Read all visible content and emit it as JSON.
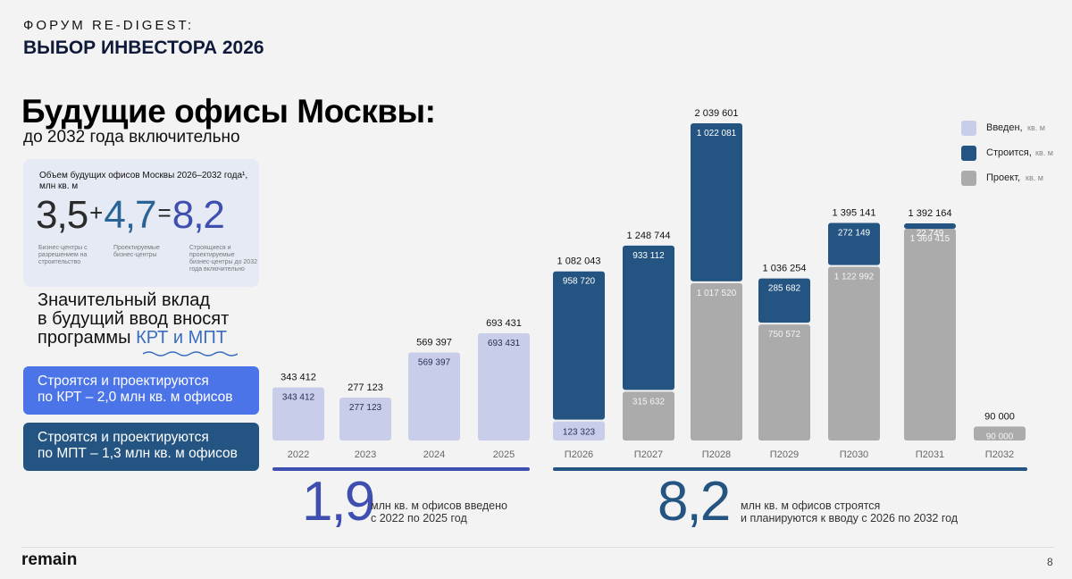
{
  "header": {
    "forum": "ФОРУМ RE-DIGEST:",
    "subtitle": "ВЫБОР ИНВЕСТОРА 2026"
  },
  "title": {
    "main": "Будущие офисы Москвы:",
    "sub": "до 2032 года включительно"
  },
  "volume_card": {
    "title": "Объем будущих офисов Москвы 2026–2032 года¹,",
    "unit": "млн кв. м",
    "n1": "3,5",
    "op1": "+",
    "n2": "4,7",
    "op2": "=",
    "n3": "8,2",
    "cap1": "Бизнес-центры с разрешением на строительство",
    "cap2": "Проектируемые бизнес-центры",
    "cap3": "Строящиеся и проектируемые бизнес-центры до 2032 года включительно"
  },
  "contribution": {
    "line1": "Значительный вклад",
    "line2": "в будущий ввод вносят",
    "line3_prefix": "программы ",
    "line3_hl": "КРТ и МПТ"
  },
  "pills": {
    "krt_line1": "Строятся и проектируются",
    "krt_line2": "по КРТ – 2,0 млн кв. м офисов",
    "mpt_line1": "Строятся и проектируются",
    "mpt_line2": "по МПТ – 1,3 млн кв. м офисов"
  },
  "legend": [
    {
      "label": "Введен,",
      "unit": "кв. м",
      "color": "#c8cdea"
    },
    {
      "label": "Строится,",
      "unit": "кв. м",
      "color": "#245481"
    },
    {
      "label": "Проект,",
      "unit": "кв. м",
      "color": "#ababab"
    }
  ],
  "summary": {
    "left_big": "1,9",
    "left_text1": "млн кв. м офисов введено",
    "left_text2": "с 2022 по 2025 год",
    "right_big": "8,2",
    "right_text1": "млн кв. м офисов строятся",
    "right_text2": "и планируются к вводу с 2026 по 2032 год"
  },
  "footer": {
    "logo": "remain",
    "page": "8"
  },
  "chart_data": {
    "type": "bar",
    "stacked": true,
    "categories": [
      "2022",
      "2023",
      "2024",
      "2025",
      "П2026",
      "П2027",
      "П2028",
      "П2029",
      "П2030",
      "П2031",
      "П2032"
    ],
    "series": [
      {
        "name": "Введен",
        "color": "#c8cdea",
        "values": [
          343412,
          277123,
          569397,
          693431,
          123323,
          0,
          0,
          0,
          0,
          0,
          0
        ],
        "labels": [
          "343 412",
          "277 123",
          "569 397",
          "693 431",
          "123 323",
          "",
          "",
          "",
          "",
          "",
          ""
        ]
      },
      {
        "name": "Проект",
        "color": "#ababab",
        "values": [
          0,
          0,
          0,
          0,
          0,
          315632,
          1017520,
          750572,
          1122992,
          1369415,
          90000
        ],
        "labels": [
          "",
          "",
          "",
          "",
          "",
          "315 632",
          "1 017 520",
          "750 572",
          "1 122 992",
          "1 369 415",
          "90 000"
        ]
      },
      {
        "name": "Строится",
        "color": "#245481",
        "values": [
          0,
          0,
          0,
          0,
          958720,
          933112,
          1022081,
          285682,
          272149,
          22749,
          0
        ],
        "labels": [
          "",
          "",
          "",
          "",
          "958 720",
          "933 112",
          "1 022 081",
          "285 682",
          "272 149",
          "22 749",
          ""
        ]
      }
    ],
    "totals": [
      "343 412",
      "277 123",
      "569 397",
      "693 431",
      "1 082 043",
      "1 248 744",
      "2 039 601",
      "1 036 254",
      "1 395 141",
      "1 392 164",
      "90 000"
    ],
    "ylim": [
      0,
      2039601
    ],
    "legend_position": "top-right",
    "grid": false
  }
}
